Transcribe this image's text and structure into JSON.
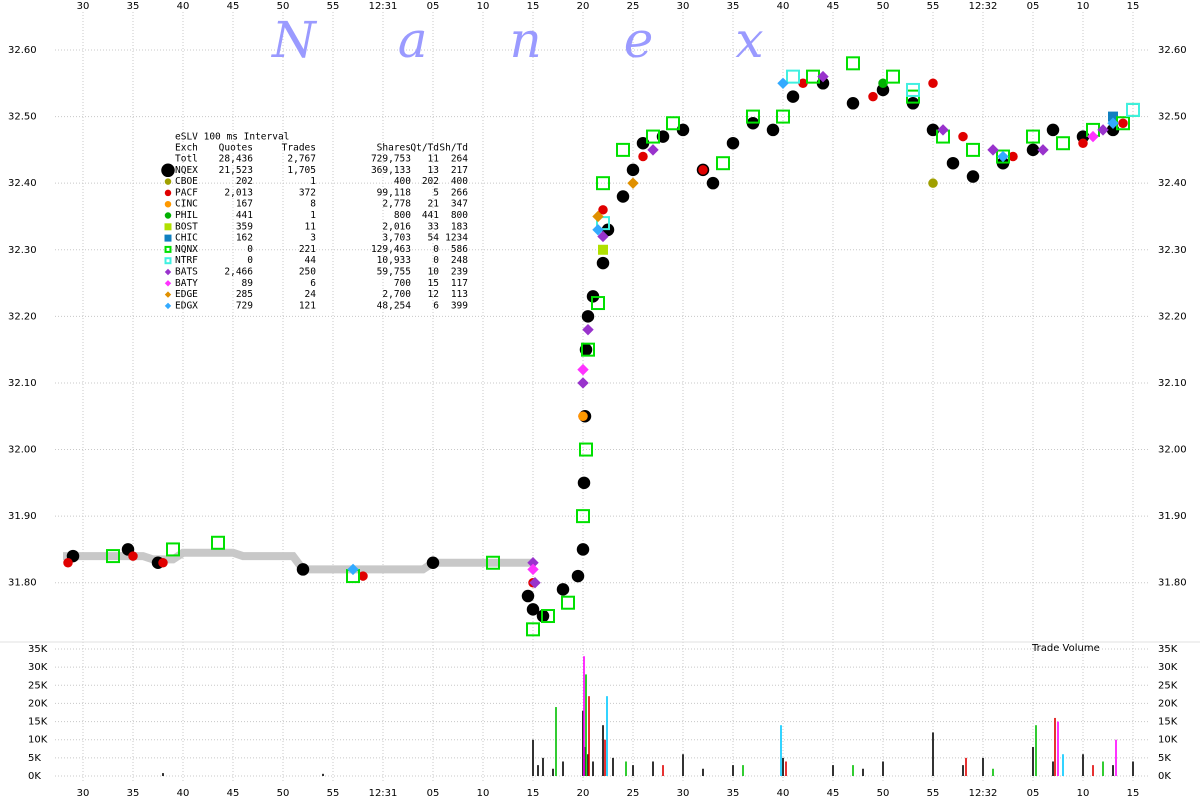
{
  "chart_data": {
    "type": "scatter",
    "watermark": "Nanex",
    "volume_label": "Trade Volume",
    "grid": true,
    "xlim": [
      27.2,
      136.7
    ],
    "xticks": [
      30,
      35,
      40,
      45,
      50,
      55,
      {
        "value": 60,
        "label": "12:31"
      },
      {
        "value": 65,
        "label": "05"
      },
      {
        "value": 70,
        "label": "10"
      },
      {
        "value": 75,
        "label": "15"
      },
      {
        "value": 80,
        "label": "20"
      },
      {
        "value": 85,
        "label": "25"
      },
      {
        "value": 90,
        "label": "30"
      },
      {
        "value": 95,
        "label": "35"
      },
      {
        "value": 100,
        "label": "40"
      },
      {
        "value": 105,
        "label": "45"
      },
      {
        "value": 110,
        "label": "50"
      },
      {
        "value": 115,
        "label": "55"
      },
      {
        "value": 120,
        "label": "12:32"
      },
      {
        "value": 125,
        "label": "05"
      },
      {
        "value": 130,
        "label": "10"
      },
      {
        "value": 135,
        "label": "15"
      }
    ],
    "ylim": [
      31.72,
      32.65
    ],
    "yticks": [
      {
        "value": 31.8,
        "label": "31.80"
      },
      {
        "value": 31.9,
        "label": "31.90"
      },
      {
        "value": 32.0,
        "label": "32.00"
      },
      {
        "value": 32.1,
        "label": "32.10"
      },
      {
        "value": 32.2,
        "label": "32.20"
      },
      {
        "value": 32.3,
        "label": "32.30"
      },
      {
        "value": 32.4,
        "label": "32.40"
      },
      {
        "value": 32.5,
        "label": "32.50"
      },
      {
        "value": 32.6,
        "label": "32.60"
      }
    ],
    "nbbo": {
      "color": "#c8c8c8",
      "x": [
        28,
        36,
        37,
        39,
        40,
        45,
        46,
        51,
        52,
        64,
        65,
        75
      ],
      "values": [
        31.84,
        31.84,
        31.835,
        31.835,
        31.845,
        31.845,
        31.84,
        31.84,
        31.82,
        31.82,
        31.83,
        31.83
      ]
    },
    "series": [
      {
        "name": "NQEX",
        "color": "#000000",
        "marker": "circle",
        "hollow": false,
        "stats": [
          "21,523",
          "1,705",
          "369,133",
          "13",
          "217"
        ],
        "x": [
          29,
          34.5,
          37.5,
          52,
          65,
          74.5,
          75,
          76,
          78,
          79.5,
          80,
          80.1,
          80.2,
          80.3,
          80.5,
          81,
          82,
          82.5,
          84,
          85,
          86,
          88,
          90,
          92,
          93,
          95,
          97,
          99,
          101,
          104,
          107,
          110,
          113,
          115,
          117,
          119,
          122,
          125,
          127,
          130,
          133
        ],
        "values": [
          31.84,
          31.85,
          31.83,
          31.82,
          31.83,
          31.78,
          31.76,
          31.75,
          31.79,
          31.81,
          31.85,
          31.95,
          32.05,
          32.15,
          32.2,
          32.23,
          32.28,
          32.33,
          32.38,
          32.42,
          32.46,
          32.47,
          32.48,
          32.42,
          32.4,
          32.46,
          32.49,
          32.48,
          32.53,
          32.55,
          32.52,
          32.54,
          32.52,
          32.48,
          32.43,
          32.41,
          32.43,
          32.45,
          32.48,
          32.47,
          32.48
        ]
      },
      {
        "name": "CBOE",
        "color": "#a0a000",
        "marker": "circle",
        "hollow": false,
        "stats": [
          "202",
          "1",
          "400",
          "202",
          "400"
        ],
        "x": [
          115
        ],
        "values": [
          32.4
        ]
      },
      {
        "name": "PACF",
        "color": "#e00000",
        "marker": "circle",
        "hollow": false,
        "stats": [
          "2,013",
          "372",
          "99,118",
          "5",
          "266"
        ],
        "x": [
          28.5,
          35,
          38,
          58,
          75,
          80,
          82,
          86,
          92,
          102,
          109,
          115,
          118,
          123,
          130,
          134
        ],
        "values": [
          31.83,
          31.84,
          31.83,
          31.81,
          31.8,
          32.05,
          32.36,
          32.44,
          32.42,
          32.55,
          32.53,
          32.55,
          32.47,
          32.44,
          32.46,
          32.49
        ]
      },
      {
        "name": "CINC",
        "color": "#ff9900",
        "marker": "circle",
        "hollow": false,
        "stats": [
          "167",
          "8",
          "2,778",
          "21",
          "347"
        ],
        "x": [
          80
        ],
        "values": [
          32.05
        ]
      },
      {
        "name": "PHIL",
        "color": "#00b000",
        "marker": "circle",
        "hollow": false,
        "stats": [
          "441",
          "1",
          "800",
          "441",
          "800"
        ],
        "x": [
          110
        ],
        "values": [
          32.55
        ]
      },
      {
        "name": "BOST",
        "color": "#b0e000",
        "marker": "square",
        "hollow": false,
        "stats": [
          "359",
          "11",
          "2,016",
          "33",
          "183"
        ],
        "x": [
          82
        ],
        "values": [
          32.3
        ]
      },
      {
        "name": "CHIC",
        "color": "#1080c0",
        "marker": "square",
        "hollow": false,
        "stats": [
          "162",
          "3",
          "3,703",
          "54",
          "1234"
        ],
        "x": [
          133
        ],
        "values": [
          32.5
        ]
      },
      {
        "name": "NQNX",
        "color": "#00e000",
        "marker": "square",
        "hollow": true,
        "stats": [
          "0",
          "221",
          "129,463",
          "0",
          "586"
        ],
        "x": [
          33,
          39,
          43.5,
          57,
          71,
          75,
          76.5,
          78.5,
          80,
          80.3,
          80.5,
          81.5,
          82,
          84,
          87,
          89,
          94,
          97,
          100,
          103,
          107,
          111,
          113,
          116,
          119,
          122,
          125,
          128,
          131,
          134,
          135
        ],
        "values": [
          31.84,
          31.85,
          31.86,
          31.81,
          31.83,
          31.73,
          31.75,
          31.77,
          31.9,
          32.0,
          32.15,
          32.22,
          32.4,
          32.45,
          32.47,
          32.49,
          32.43,
          32.5,
          32.5,
          32.56,
          32.58,
          32.56,
          32.53,
          32.47,
          32.45,
          32.44,
          32.47,
          32.46,
          32.48,
          32.49,
          32.51
        ]
      },
      {
        "name": "NTRF",
        "color": "#40f0e0",
        "marker": "square",
        "hollow": true,
        "stats": [
          "0",
          "44",
          "10,933",
          "0",
          "248"
        ],
        "x": [
          82,
          101,
          113,
          135
        ],
        "values": [
          32.34,
          32.56,
          32.54,
          32.51
        ]
      },
      {
        "name": "BATS",
        "color": "#9933cc",
        "marker": "diamond",
        "hollow": false,
        "stats": [
          "2,466",
          "250",
          "59,755",
          "10",
          "239"
        ],
        "x": [
          75,
          75.2,
          80,
          80.5,
          82,
          87,
          104,
          116,
          121,
          126,
          132
        ],
        "values": [
          31.83,
          31.8,
          32.1,
          32.18,
          32.32,
          32.45,
          32.56,
          32.48,
          32.45,
          32.45,
          32.48
        ]
      },
      {
        "name": "BATY",
        "color": "#ff33ff",
        "marker": "diamond",
        "hollow": false,
        "stats": [
          "89",
          "6",
          "700",
          "15",
          "117"
        ],
        "x": [
          75,
          80,
          131
        ],
        "values": [
          31.82,
          32.12,
          32.47
        ]
      },
      {
        "name": "EDGE",
        "color": "#e09000",
        "marker": "diamond",
        "hollow": false,
        "stats": [
          "285",
          "24",
          "2,700",
          "12",
          "113"
        ],
        "x": [
          81.5,
          85
        ],
        "values": [
          32.35,
          32.4
        ]
      },
      {
        "name": "EDGX",
        "color": "#33aaff",
        "marker": "diamond",
        "hollow": false,
        "stats": [
          "729",
          "121",
          "48,254",
          "6",
          "399"
        ],
        "x": [
          57,
          81.5,
          100,
          122,
          133
        ],
        "values": [
          31.82,
          32.33,
          32.55,
          32.44,
          32.49
        ]
      }
    ],
    "volume_ylim": [
      0,
      35000
    ],
    "volume_yticks": [
      {
        "value": 0,
        "label": "0K"
      },
      {
        "value": 5000,
        "label": "5K"
      },
      {
        "value": 10000,
        "label": "10K"
      },
      {
        "value": 15000,
        "label": "15K"
      },
      {
        "value": 20000,
        "label": "20K"
      },
      {
        "value": 25000,
        "label": "25K"
      },
      {
        "value": 30000,
        "label": "30K"
      },
      {
        "value": 35000,
        "label": "35K"
      }
    ],
    "volume_series": [
      {
        "color": "#000000",
        "x": [
          38,
          54,
          75,
          75.5,
          76,
          77,
          78,
          80,
          80.2,
          80.5,
          81,
          82,
          83,
          85,
          87,
          90,
          92,
          95,
          100,
          105,
          108,
          110,
          115,
          118,
          120,
          125,
          127,
          130,
          133,
          135
        ],
        "values": [
          800,
          600,
          10000,
          3000,
          5000,
          2000,
          4000,
          18000,
          8000,
          6000,
          4000,
          14000,
          5000,
          3000,
          4000,
          6000,
          2000,
          3000,
          5000,
          3000,
          2000,
          4000,
          12000,
          3000,
          5000,
          8000,
          4000,
          6000,
          3000,
          4000
        ]
      },
      {
        "color": "#e00000",
        "x": [
          80.6,
          82.2,
          88,
          100.3,
          118.3,
          127.2,
          131
        ],
        "values": [
          22000,
          10000,
          3000,
          4000,
          5000,
          16000,
          3000
        ]
      },
      {
        "color": "#00c000",
        "x": [
          77.3,
          80.3,
          84.3,
          96,
          107,
          121,
          125.3,
          132
        ],
        "values": [
          19000,
          28000,
          4000,
          3000,
          3000,
          2000,
          14000,
          4000
        ]
      },
      {
        "color": "#ff00ff",
        "x": [
          80.1,
          127.5,
          133.3
        ],
        "values": [
          33000,
          15000,
          10000
        ]
      },
      {
        "color": "#00c8ff",
        "x": [
          82.4,
          99.8,
          128
        ],
        "values": [
          22000,
          14000,
          6000
        ]
      }
    ]
  },
  "stats_table": {
    "title": "eSLV 100 ms Interval",
    "columns": [
      "Exch",
      "Quotes",
      "Trades",
      "Shares",
      "Qt/Td",
      "Sh/Td"
    ],
    "total_row": [
      "Totl",
      "28,436",
      "2,767",
      "729,753",
      "11",
      "264"
    ]
  }
}
